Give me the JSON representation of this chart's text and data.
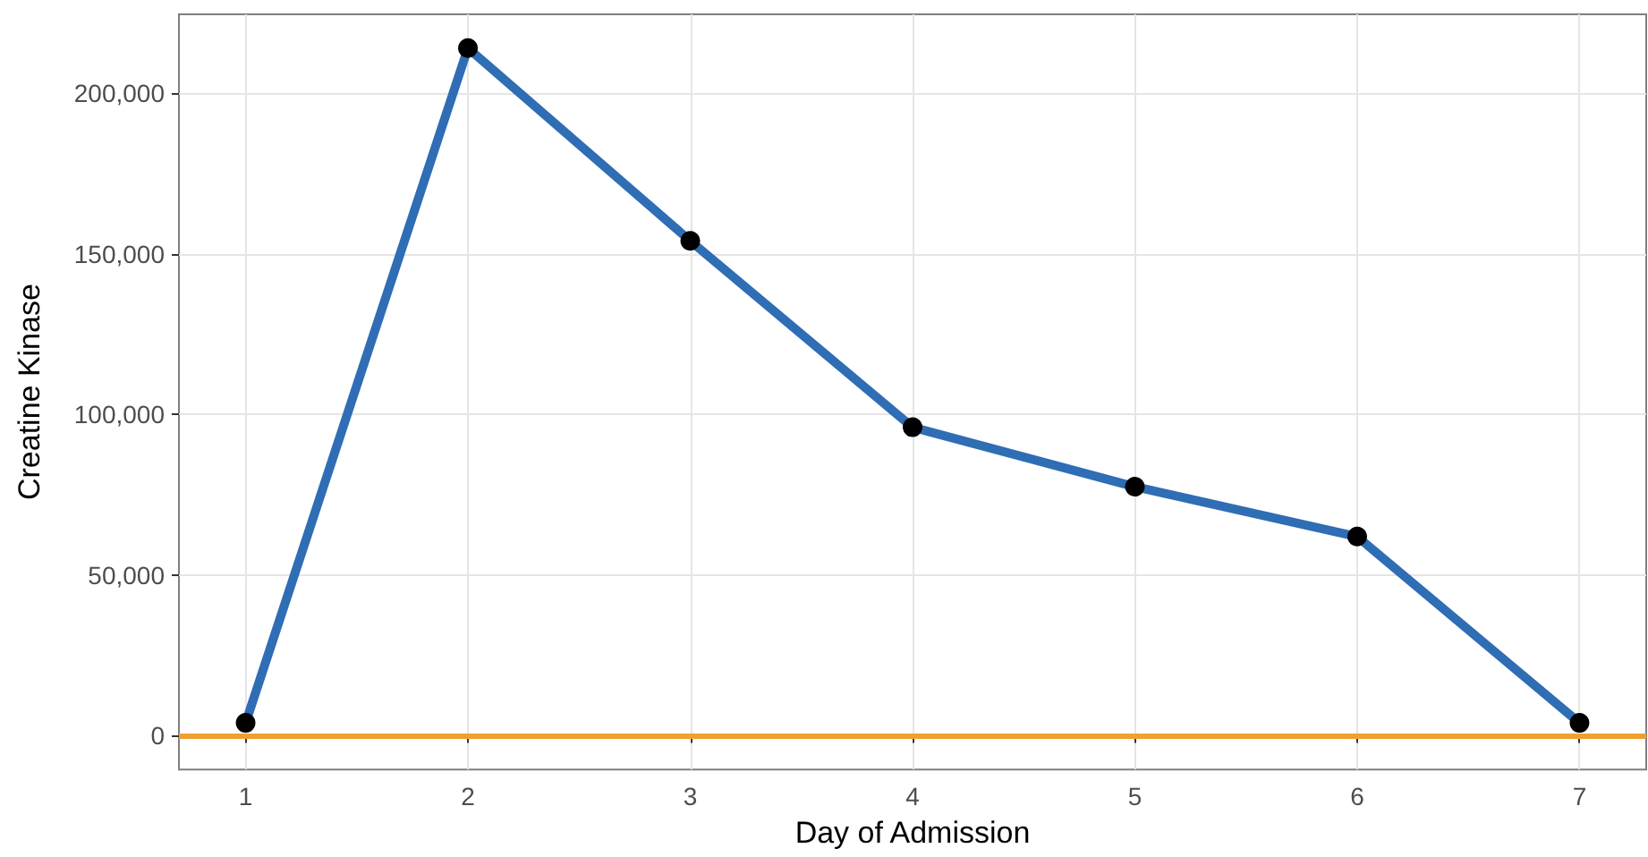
{
  "chart_data": {
    "type": "line",
    "xlabel": "Day of Admission",
    "ylabel": "Creatine Kinase",
    "x": [
      1,
      2,
      3,
      4,
      5,
      6,
      7
    ],
    "series": [
      {
        "color": "#2f6db5",
        "values": [
          4000,
          214000,
          154000,
          96000,
          77500,
          62000,
          4000
        ]
      }
    ],
    "xlim": [
      0.7,
      7.3
    ],
    "xticks": [
      1,
      2,
      3,
      4,
      5,
      6,
      7
    ],
    "ylim": [
      -10500,
      224500
    ],
    "yticks": [
      {
        "value": 0,
        "label": "0"
      },
      {
        "value": 50000,
        "label": "50,000"
      },
      {
        "value": 100000,
        "label": "100,000"
      },
      {
        "value": 150000,
        "label": "150,000"
      },
      {
        "value": 200000,
        "label": "200,000"
      }
    ],
    "ref_lines": [
      {
        "axis": "y",
        "value": 0,
        "color": "#f0a030"
      }
    ],
    "grid": true,
    "marker": "circle",
    "line_style": "solid"
  }
}
